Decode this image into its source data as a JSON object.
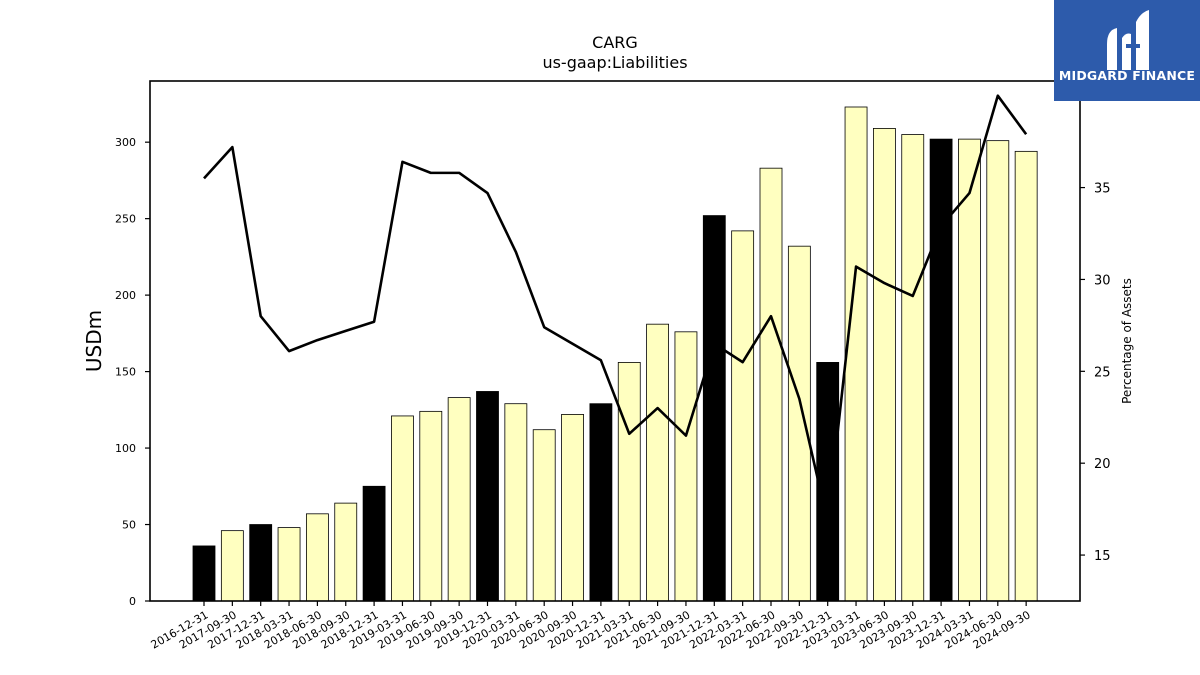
{
  "logo": {
    "text": "MIDGARD FINANCE",
    "bg_color": "#2d5bab"
  },
  "chart_data": {
    "type": "bar",
    "title": "CARG",
    "subtitle": "us-gaap:Liabilities",
    "ylabel": "USDm",
    "y2label": "Percentage of Assets",
    "ylim": [
      0,
      340
    ],
    "y2lim": [
      12.5,
      40.8
    ],
    "yticks": [
      0,
      50,
      100,
      150,
      200,
      250,
      300
    ],
    "y2ticks": [
      15,
      20,
      25,
      30,
      35,
      40
    ],
    "categories": [
      "2016-12-31",
      "2017-09-30",
      "2017-12-31",
      "2018-03-31",
      "2018-06-30",
      "2018-09-30",
      "2018-12-31",
      "2019-03-31",
      "2019-06-30",
      "2019-09-30",
      "2019-12-31",
      "2020-03-31",
      "2020-06-30",
      "2020-09-30",
      "2020-12-31",
      "2021-03-31",
      "2021-06-30",
      "2021-09-30",
      "2021-12-31",
      "2022-03-31",
      "2022-06-30",
      "2022-09-30",
      "2022-12-31",
      "2023-03-31",
      "2023-06-30",
      "2023-09-30",
      "2023-12-31",
      "2024-03-31",
      "2024-06-30",
      "2024-09-30"
    ],
    "series": [
      {
        "kind": "bar",
        "values": [
          36,
          46,
          50,
          48,
          57,
          64,
          75,
          121,
          124,
          133,
          137,
          129,
          112,
          122,
          129,
          156,
          181,
          176,
          252,
          242,
          283,
          232,
          156,
          323,
          309,
          305,
          302,
          302,
          301,
          294
        ],
        "year_end": [
          true,
          false,
          true,
          false,
          false,
          false,
          true,
          false,
          false,
          false,
          true,
          false,
          false,
          false,
          true,
          false,
          false,
          false,
          true,
          false,
          false,
          false,
          true,
          false,
          false,
          false,
          true,
          false,
          false,
          false
        ],
        "colors": {
          "year_end": "#000000",
          "quarter": "#ffffc0"
        }
      },
      {
        "kind": "line",
        "axis": "right",
        "color": "#000000",
        "values": [
          35.5,
          37.2,
          28.0,
          26.1,
          26.7,
          27.2,
          27.7,
          36.4,
          35.8,
          35.8,
          34.7,
          31.5,
          27.4,
          26.5,
          25.6,
          21.6,
          23.0,
          21.5,
          26.5,
          25.5,
          28.0,
          23.5,
          16.8,
          30.7,
          29.8,
          29.1,
          32.9,
          34.7,
          40.0,
          37.9
        ]
      }
    ],
    "grid": false
  }
}
